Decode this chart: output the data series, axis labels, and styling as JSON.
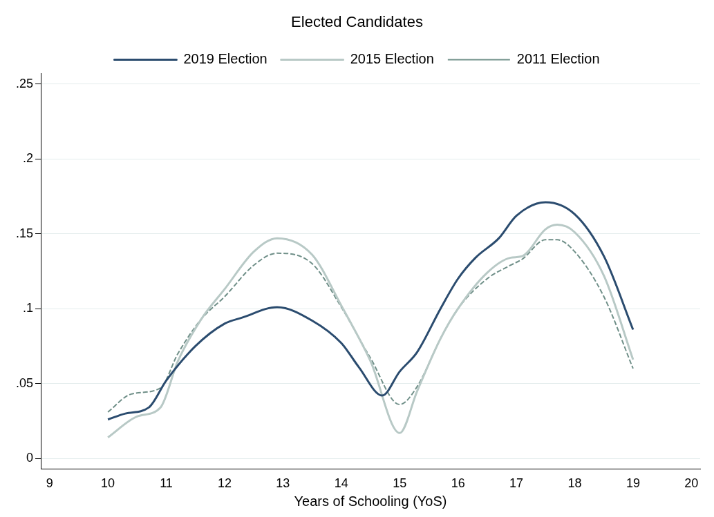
{
  "chart_data": {
    "type": "line",
    "title": "Elected Candidates",
    "xlabel": "Years of Schooling (YoS)",
    "xlim": [
      8.85,
      20.15
    ],
    "xticks": [
      9,
      10,
      11,
      12,
      13,
      14,
      15,
      16,
      17,
      18,
      19,
      20
    ],
    "ylim": [
      -0.007,
      0.257
    ],
    "yticks": [
      {
        "value": 0,
        "label": "0"
      },
      {
        "value": 0.05,
        "label": ".05"
      },
      {
        "value": 0.1,
        "label": ".1"
      },
      {
        "value": 0.15,
        "label": ".15"
      },
      {
        "value": 0.2,
        "label": ".2"
      },
      {
        "value": 0.25,
        "label": ".25"
      }
    ],
    "grid": "y",
    "legend": "top",
    "marker": "none",
    "series": [
      {
        "name": "2019 Election",
        "color": "#2b4c6f",
        "line_style": "solid",
        "x": [
          10,
          10.3,
          10.7,
          11,
          11.5,
          12,
          12.3,
          12.9,
          13.5,
          14,
          14.3,
          14.7,
          15,
          15.3,
          15.7,
          16,
          16.3,
          16.7,
          17,
          17.5,
          18,
          18.5,
          19
        ],
        "values": [
          0.026,
          0.03,
          0.034,
          0.052,
          0.075,
          0.09,
          0.094,
          0.101,
          0.092,
          0.077,
          0.061,
          0.042,
          0.058,
          0.071,
          0.1,
          0.12,
          0.134,
          0.147,
          0.162,
          0.171,
          0.163,
          0.135,
          0.086
        ]
      },
      {
        "name": "2015 Election",
        "color": "#b8c9c6",
        "line_style": "solid",
        "x": [
          10,
          10.5,
          10.9,
          11.2,
          11.6,
          12,
          12.5,
          12.9,
          13.5,
          14,
          14.5,
          15,
          15.3,
          15.7,
          16,
          16.5,
          16.9,
          17.1,
          17.5,
          17.7,
          18,
          18.5,
          19
        ],
        "values": [
          0.014,
          0.028,
          0.034,
          0.065,
          0.093,
          0.113,
          0.138,
          0.147,
          0.136,
          0.102,
          0.065,
          0.017,
          0.045,
          0.08,
          0.1,
          0.124,
          0.134,
          0.135,
          0.153,
          0.156,
          0.151,
          0.122,
          0.066
        ]
      },
      {
        "name": "2011 Election",
        "color": "#6f8f88",
        "line_style": "dashed",
        "x": [
          10,
          10.4,
          10.9,
          11.2,
          11.6,
          12,
          12.5,
          12.9,
          13.5,
          14,
          14.5,
          15,
          15.3,
          15.7,
          16,
          16.5,
          16.9,
          17.1,
          17.5,
          17.7,
          18,
          18.5,
          19
        ],
        "values": [
          0.031,
          0.043,
          0.047,
          0.07,
          0.093,
          0.108,
          0.129,
          0.137,
          0.13,
          0.101,
          0.067,
          0.036,
          0.048,
          0.08,
          0.1,
          0.12,
          0.129,
          0.133,
          0.146,
          0.146,
          0.138,
          0.108,
          0.06
        ]
      }
    ]
  }
}
